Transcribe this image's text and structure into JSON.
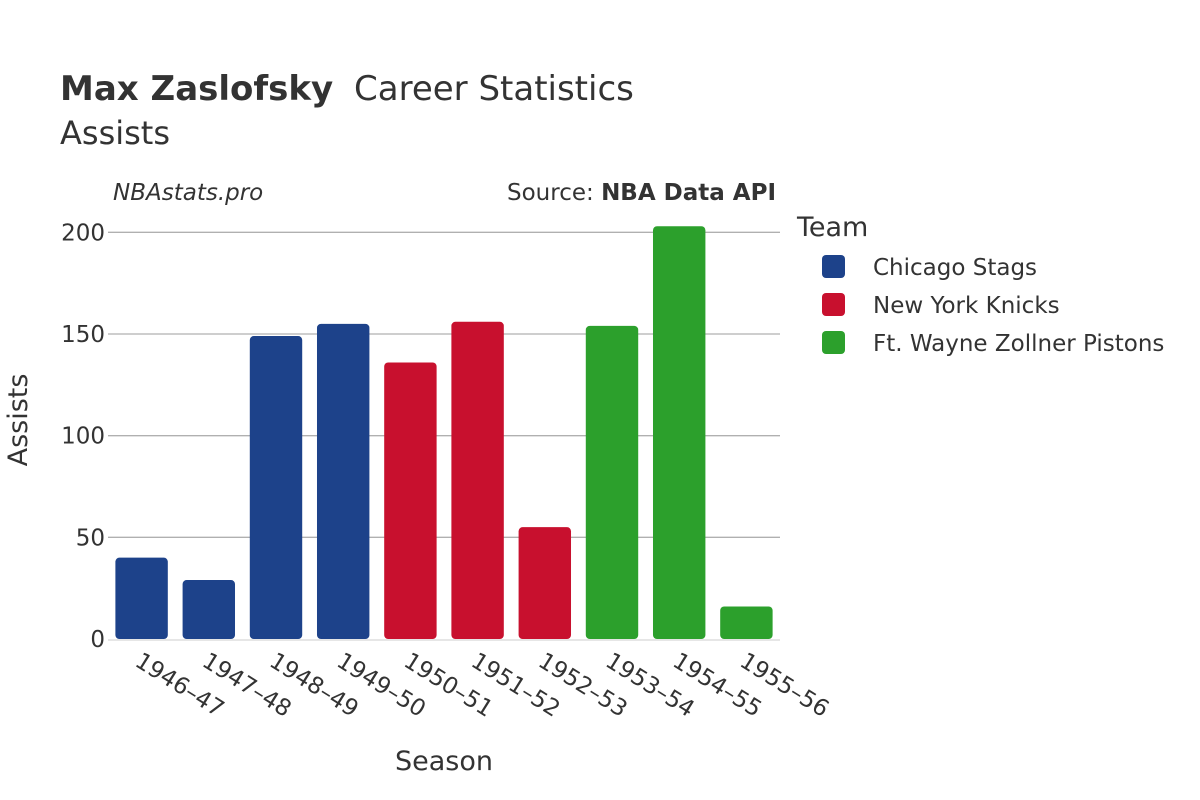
{
  "header": {
    "player": "Max Zaslofsky",
    "title_rest": "Career Statistics",
    "subtitle": "Assists"
  },
  "watermark": "NBAstats.pro",
  "source": {
    "prefix": "Source: ",
    "name": "NBA Data API"
  },
  "legend": {
    "title": "Team",
    "items": [
      {
        "label": "Chicago Stags",
        "color": "#1d428a"
      },
      {
        "label": "New York Knicks",
        "color": "#c8102e"
      },
      {
        "label": "Ft. Wayne Zollner Pistons",
        "color": "#2ca02c"
      }
    ]
  },
  "chart_data": {
    "type": "bar",
    "title": "Max Zaslofsky Career Statistics",
    "subtitle": "Assists",
    "xlabel": "Season",
    "ylabel": "Assists",
    "ylim": [
      0,
      210
    ],
    "yticks": [
      0,
      50,
      100,
      150,
      200
    ],
    "grid": true,
    "legend_position": "right",
    "categories": [
      "1946–47",
      "1947–48",
      "1948–49",
      "1949–50",
      "1950–51",
      "1951–52",
      "1952–53",
      "1953–54",
      "1954–55",
      "1955–56"
    ],
    "values": [
      40,
      29,
      149,
      155,
      136,
      156,
      55,
      154,
      203,
      16
    ],
    "teams": [
      "Chicago Stags",
      "Chicago Stags",
      "Chicago Stags",
      "Chicago Stags",
      "New York Knicks",
      "New York Knicks",
      "New York Knicks",
      "Ft. Wayne Zollner Pistons",
      "Ft. Wayne Zollner Pistons",
      "Ft. Wayne Zollner Pistons"
    ]
  }
}
